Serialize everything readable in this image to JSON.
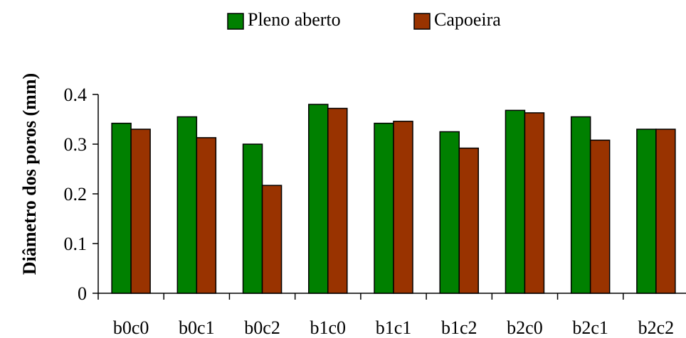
{
  "chart_data": {
    "type": "bar",
    "title": "",
    "xlabel": "",
    "ylabel": "Diâmetro dos poros (mm)",
    "ylim": [
      0,
      0.4
    ],
    "yticks": [
      "0",
      "0.1",
      "0.2",
      "0.3",
      "0.4"
    ],
    "ytick_values": [
      0,
      0.1,
      0.2,
      0.3,
      0.4
    ],
    "categories": [
      "b0c0",
      "b0c1",
      "b0c2",
      "b1c0",
      "b1c1",
      "b1c2",
      "b2c0",
      "b2c1",
      "b2c2"
    ],
    "series": [
      {
        "name": "Pleno aberto",
        "color": "#008000",
        "values": [
          0.342,
          0.355,
          0.3,
          0.38,
          0.342,
          0.325,
          0.368,
          0.355,
          0.33
        ]
      },
      {
        "name": "Capoeira",
        "color": "#993300",
        "values": [
          0.33,
          0.313,
          0.217,
          0.372,
          0.346,
          0.292,
          0.363,
          0.308,
          0.33
        ]
      }
    ],
    "grid": false,
    "legend_position": "top-center"
  }
}
